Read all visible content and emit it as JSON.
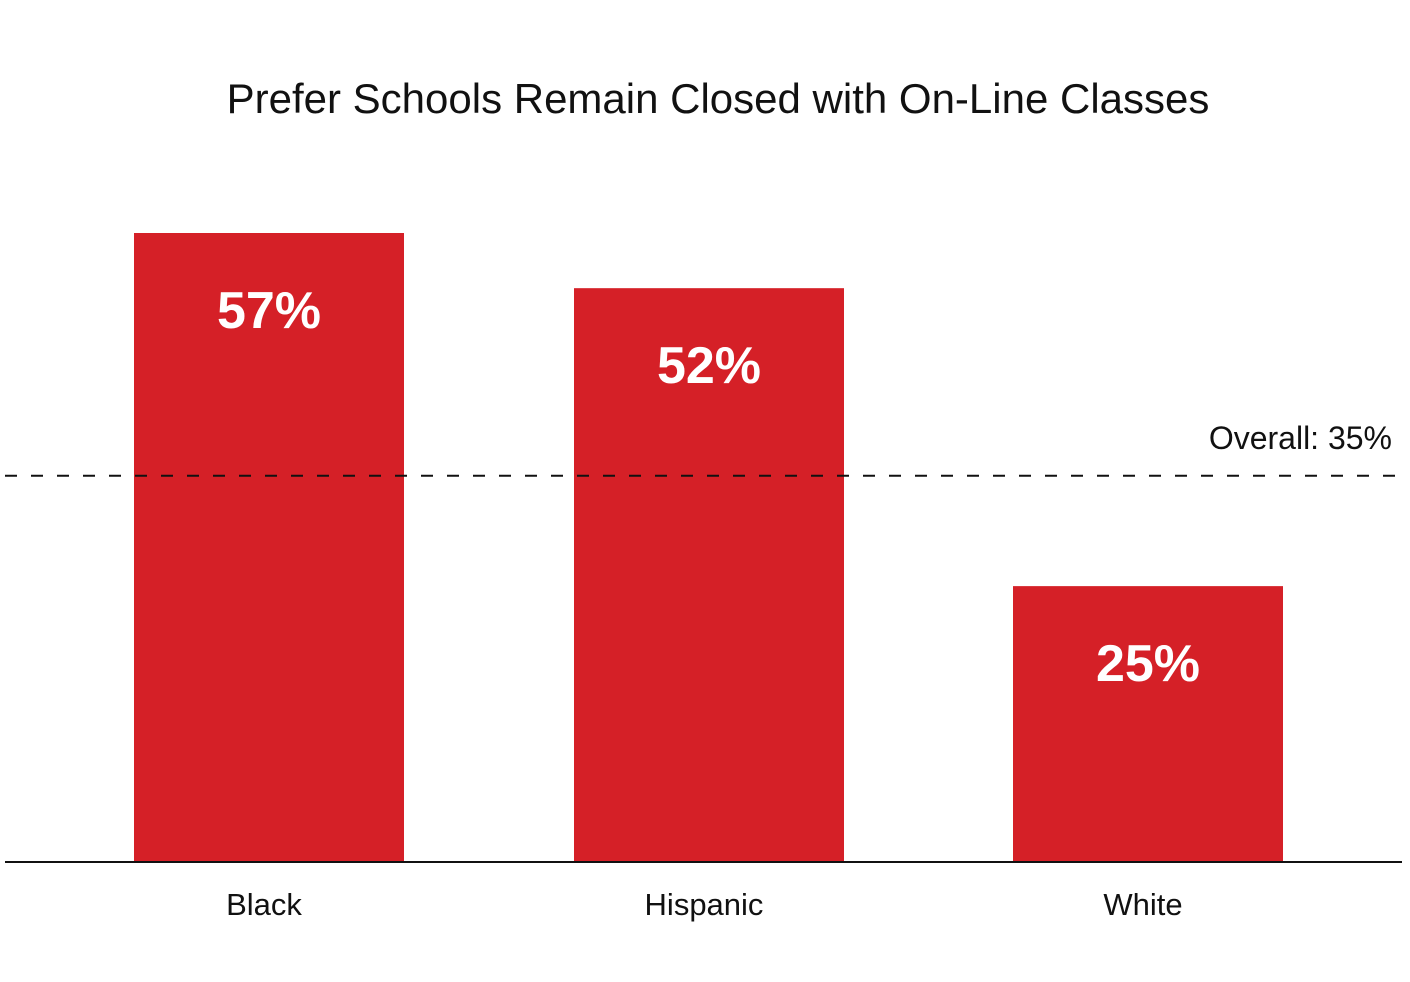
{
  "chart_data": {
    "type": "bar",
    "title": "Prefer Schools Remain Closed with On-Line Classes",
    "categories": [
      "Black",
      "Hispanic",
      "White"
    ],
    "values": [
      57,
      52,
      25
    ],
    "value_labels": [
      "57%",
      "52%",
      "25%"
    ],
    "reference_line": {
      "label": "Overall: 35%",
      "value": 35,
      "style": "dashed"
    },
    "ylim": [
      0,
      60
    ],
    "grid": false,
    "legend": "none",
    "colors": {
      "bar": "#d52027",
      "text": "#111111",
      "value_text": "#ffffff"
    }
  }
}
